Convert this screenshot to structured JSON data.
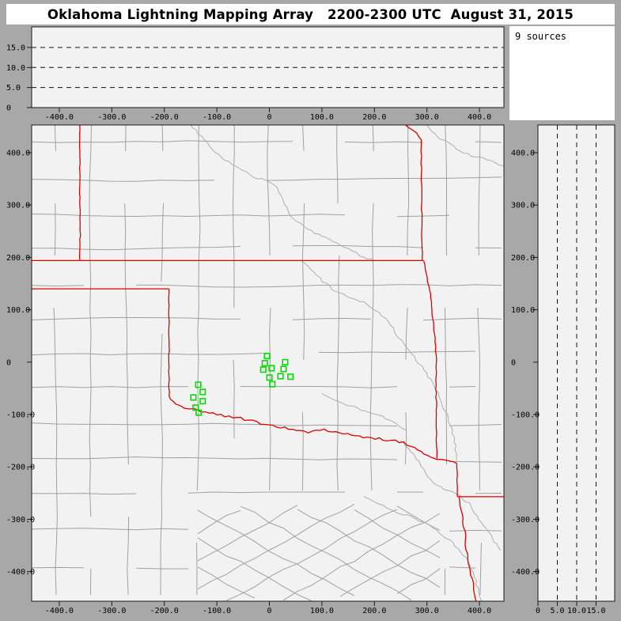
{
  "title": "Oklahoma Lightning Mapping Array   2200-2300 UTC  August 31, 2015",
  "sources_panel": {
    "label": "9 sources"
  },
  "colors": {
    "matte": "#a8a8a8",
    "panel_bg": "#f2f2f2",
    "info_bg": "#ffffff",
    "frame": "#1a1a1a",
    "county_line": "#a0a0a0",
    "river_line": "#aeaeae",
    "state_border": "#dd0000",
    "station_marker": "#00dd00",
    "dashed_line": "#111111"
  },
  "chart_data": {
    "type": "scatter",
    "title": "Oklahoma Lightning Mapping Array   2200-2300 UTC  August 31, 2015",
    "annotation": "9 sources",
    "sources_count": 9,
    "panels": {
      "alt_vs_ew": {
        "position": "top",
        "x_axis_km": {
          "range": [
            -453,
            446
          ],
          "ticks": [
            {
              "label": "-400.0",
              "value": -400
            },
            {
              "label": "-300.0",
              "value": -300
            },
            {
              "label": "-200.0",
              "value": -200
            },
            {
              "label": "-100.0",
              "value": -100
            },
            {
              "label": "0",
              "value": 0
            },
            {
              "label": "100.0",
              "value": 100
            },
            {
              "label": "200.0",
              "value": 200
            },
            {
              "label": "300.0",
              "value": 300
            },
            {
              "label": "400.0",
              "value": 400
            }
          ]
        },
        "y_axis_alt_km": {
          "range": [
            0,
            20.1
          ],
          "ticks": [
            {
              "label": "0",
              "value": 0
            },
            {
              "label": "5.0",
              "value": 5
            },
            {
              "label": "10.0",
              "value": 10
            },
            {
              "label": "15.0",
              "value": 15
            }
          ]
        },
        "dashed_gridlines_km": [
          5,
          10,
          15
        ],
        "points": []
      },
      "plan_view": {
        "position": "main",
        "x_axis_km": {
          "range": [
            -453,
            446
          ],
          "ticks": [
            {
              "label": "-400.0",
              "value": -400
            },
            {
              "label": "-300.0",
              "value": -300
            },
            {
              "label": "-200.0",
              "value": -200
            },
            {
              "label": "-100.0",
              "value": -100
            },
            {
              "label": "0",
              "value": 0
            },
            {
              "label": "100.0",
              "value": 100
            },
            {
              "label": "200.0",
              "value": 200
            },
            {
              "label": "300.0",
              "value": 300
            },
            {
              "label": "400.0",
              "value": 400
            }
          ]
        },
        "y_axis_km": {
          "range": [
            -456,
            453
          ],
          "ticks": [
            {
              "label": "400.0",
              "value": 400
            },
            {
              "label": "300.0",
              "value": 300
            },
            {
              "label": "200.0",
              "value": 200
            },
            {
              "label": "100.0",
              "value": 100
            },
            {
              "label": "0",
              "value": 0
            },
            {
              "label": "-100.0",
              "value": -100
            },
            {
              "label": "-200.0",
              "value": -200
            },
            {
              "label": "-300.0",
              "value": -300
            },
            {
              "label": "-400.0",
              "value": -400
            }
          ]
        },
        "lma_stations_km": [
          [
            -4.5,
            11.7
          ],
          [
            -8.6,
            -2.0
          ],
          [
            30.1,
            0.0
          ],
          [
            -11.6,
            -14.2
          ],
          [
            4.1,
            -11.6
          ],
          [
            27.1,
            -13.1
          ],
          [
            0.0,
            -29.4
          ],
          [
            21.1,
            -26.8
          ],
          [
            40.2,
            -27.9
          ],
          [
            5.6,
            -42.0
          ],
          [
            -135.5,
            -43.1
          ],
          [
            -126.9,
            -56.8
          ],
          [
            -144.6,
            -67.4
          ],
          [
            -126.9,
            -74.6
          ],
          [
            -140.5,
            -86.8
          ],
          [
            -134.5,
            -96.3
          ]
        ],
        "state_borders_km": [
          {
            "amp": 0.8,
            "points": [
              [
                -361,
                453
              ],
              [
                -361,
                330
              ],
              [
                -360,
                250
              ],
              [
                -361,
                195
              ]
            ]
          },
          {
            "amp": 0,
            "points": [
              [
                -453,
                194
              ],
              [
                294,
                194
              ]
            ]
          },
          {
            "amp": 0.8,
            "points": [
              [
                259,
                453
              ],
              [
                280,
                437
              ],
              [
                289,
                425
              ],
              [
                290,
                300
              ],
              [
                291,
                193
              ]
            ]
          },
          {
            "amp": 1.0,
            "points": [
              [
                294,
                193
              ],
              [
                306,
                130
              ],
              [
                317,
                30
              ],
              [
                318,
                -124
              ],
              [
                319,
                -184
              ]
            ]
          },
          {
            "amp": 0,
            "points": [
              [
                -453,
                140
              ],
              [
                -191,
                140
              ]
            ]
          },
          {
            "amp": 0.8,
            "points": [
              [
                -191,
                140
              ],
              [
                -191,
                -65
              ]
            ]
          },
          {
            "amp": 2.5,
            "points": [
              [
                -191,
                -65
              ],
              [
                -179,
                -82
              ],
              [
                -152,
                -88
              ],
              [
                -122,
                -95
              ],
              [
                -92,
                -101
              ],
              [
                -62,
                -106
              ],
              [
                -32,
                -113
              ],
              [
                -9,
                -119
              ],
              [
                14,
                -124
              ],
              [
                44,
                -128
              ],
              [
                74,
                -133
              ],
              [
                104,
                -130
              ],
              [
                134,
                -136
              ],
              [
                164,
                -140
              ],
              [
                194,
                -145
              ],
              [
                224,
                -148
              ],
              [
                255,
                -154
              ],
              [
                277,
                -163
              ],
              [
                300,
                -179
              ],
              [
                319,
                -184
              ],
              [
                337,
                -189
              ],
              [
                357,
                -194
              ]
            ]
          },
          {
            "amp": 0.6,
            "points": [
              [
                357,
                -194
              ],
              [
                358,
                -257
              ]
            ]
          },
          {
            "amp": 0,
            "points": [
              [
                358,
                -257
              ],
              [
                446,
                -257
              ]
            ]
          },
          {
            "amp": 1.5,
            "points": [
              [
                361,
                -257
              ],
              [
                366,
                -290
              ],
              [
                372,
                -323
              ],
              [
                375,
                -358
              ],
              [
                381,
                -393
              ],
              [
                387,
                -421
              ],
              [
                394,
                -458
              ]
            ]
          }
        ],
        "rivers_km": [
          [
            [
              -150,
              453
            ],
            [
              -120,
              420
            ],
            [
              -90,
              390
            ],
            [
              -60,
              370
            ],
            [
              -30,
              355
            ],
            [
              10,
              340
            ],
            [
              40,
              280
            ],
            [
              80,
              250
            ],
            [
              120,
              230
            ],
            [
              150,
              215
            ],
            [
              180,
              200
            ],
            [
              200,
              194
            ]
          ],
          [
            [
              60,
              194
            ],
            [
              90,
              165
            ],
            [
              120,
              140
            ],
            [
              150,
              125
            ],
            [
              180,
              115
            ],
            [
              210,
              95
            ],
            [
              235,
              65
            ],
            [
              255,
              35
            ],
            [
              275,
              10
            ],
            [
              295,
              -15
            ],
            [
              315,
              -45
            ],
            [
              330,
              -80
            ],
            [
              345,
              -120
            ],
            [
              355,
              -160
            ],
            [
              357,
              -192
            ]
          ],
          [
            [
              250,
              -150
            ],
            [
              270,
              -170
            ],
            [
              285,
              -190
            ],
            [
              300,
              -220
            ],
            [
              320,
              -235
            ],
            [
              340,
              -245
            ],
            [
              357,
              -251
            ],
            [
              380,
              -270
            ],
            [
              400,
              -300
            ],
            [
              420,
              -330
            ],
            [
              440,
              -360
            ]
          ],
          [
            [
              180,
              -257
            ],
            [
              210,
              -270
            ],
            [
              240,
              -285
            ],
            [
              270,
              -295
            ],
            [
              300,
              -310
            ],
            [
              330,
              -330
            ],
            [
              360,
              -355
            ],
            [
              380,
              -380
            ],
            [
              390,
              -410
            ],
            [
              400,
              -440
            ],
            [
              405,
              -458
            ]
          ],
          [
            [
              300,
              453
            ],
            [
              320,
              430
            ],
            [
              345,
              415
            ],
            [
              370,
              400
            ],
            [
              400,
              390
            ],
            [
              430,
              380
            ],
            [
              446,
              375
            ]
          ],
          [
            [
              100,
              -60
            ],
            [
              130,
              -75
            ],
            [
              160,
              -85
            ],
            [
              190,
              -95
            ],
            [
              215,
              -105
            ],
            [
              240,
              -118
            ],
            [
              260,
              -130
            ]
          ]
        ]
      },
      "alt_vs_ns": {
        "position": "right",
        "x_axis_alt_km": {
          "range": [
            0,
            19.8
          ],
          "ticks": [
            {
              "label": "0",
              "value": 0
            },
            {
              "label": "5.0",
              "value": 5
            },
            {
              "label": "10.0",
              "value": 10
            },
            {
              "label": "15.0",
              "value": 15
            }
          ]
        },
        "y_axis_km": {
          "range": [
            -456,
            453
          ],
          "ticks": [
            {
              "label": "400.0",
              "value": 400
            },
            {
              "label": "300.0",
              "value": 300
            },
            {
              "label": "200.0",
              "value": 200
            },
            {
              "label": "100.0",
              "value": 100
            },
            {
              "label": "0",
              "value": 0
            },
            {
              "label": "-100.0",
              "value": -100
            },
            {
              "label": "-200.0",
              "value": -200
            },
            {
              "label": "-300.0",
              "value": -300
            },
            {
              "label": "-400.0",
              "value": -400
            }
          ]
        },
        "dashed_gridlines_km": [
          5,
          10,
          15
        ],
        "points": []
      }
    }
  }
}
